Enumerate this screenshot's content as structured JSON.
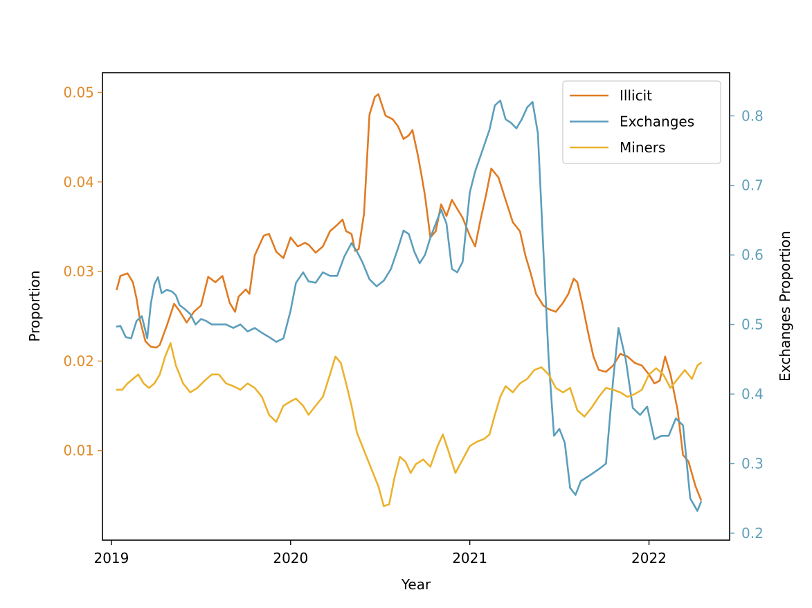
{
  "chart_data": {
    "type": "line",
    "xlabel": "Year",
    "ylabel_left": "Proportion",
    "ylabel_right": "Exchanges Proportion",
    "xlim": [
      2018.95,
      2022.45
    ],
    "ylim_left": [
      0.0,
      0.0522
    ],
    "ylim_right": [
      0.19,
      0.862
    ],
    "x_ticks": [
      2019,
      2020,
      2021,
      2022
    ],
    "x_tick_labels": [
      "2019",
      "2020",
      "2021",
      "2022"
    ],
    "y_left_ticks": [
      0.01,
      0.02,
      0.03,
      0.04,
      0.05
    ],
    "y_left_tick_labels": [
      "0.01",
      "0.02",
      "0.03",
      "0.04",
      "0.05"
    ],
    "y_right_ticks": [
      0.2,
      0.3,
      0.4,
      0.5,
      0.6,
      0.7,
      0.8
    ],
    "y_right_tick_labels": [
      "0.2",
      "0.3",
      "0.4",
      "0.5",
      "0.6",
      "0.7",
      "0.8"
    ],
    "grid": false,
    "legend_placement": "top-right",
    "left_axis_color": "#e08a2a",
    "right_axis_color": "#5fa0b8",
    "series": [
      {
        "name": "Illicit",
        "axis": "left",
        "color": "#e07b22",
        "x": [
          2019.03,
          2019.05,
          2019.09,
          2019.12,
          2019.14,
          2019.16,
          2019.19,
          2019.22,
          2019.25,
          2019.27,
          2019.31,
          2019.35,
          2019.38,
          2019.42,
          2019.46,
          2019.5,
          2019.54,
          2019.58,
          2019.62,
          2019.66,
          2019.69,
          2019.71,
          2019.75,
          2019.77,
          2019.8,
          2019.85,
          2019.88,
          2019.92,
          2019.96,
          2020.0,
          2020.04,
          2020.08,
          2020.1,
          2020.14,
          2020.18,
          2020.22,
          2020.26,
          2020.29,
          2020.31,
          2020.34,
          2020.36,
          2020.38,
          2020.41,
          2020.44,
          2020.47,
          2020.49,
          2020.53,
          2020.57,
          2020.6,
          2020.63,
          2020.66,
          2020.68,
          2020.71,
          2020.73,
          2020.75,
          2020.78,
          2020.81,
          2020.84,
          2020.87,
          2020.9,
          2020.93,
          2020.96,
          2021.0,
          2021.03,
          2021.06,
          2021.09,
          2021.12,
          2021.16,
          2021.2,
          2021.24,
          2021.28,
          2021.31,
          2021.34,
          2021.37,
          2021.41,
          2021.44,
          2021.48,
          2021.52,
          2021.55,
          2021.58,
          2021.6,
          2021.63,
          2021.66,
          2021.69,
          2021.72,
          2021.76,
          2021.8,
          2021.84,
          2021.88,
          2021.92,
          2021.96,
          2022.0,
          2022.03,
          2022.06,
          2022.09,
          2022.12,
          2022.16,
          2022.19,
          2022.22,
          2022.26,
          2022.29
        ],
        "values": [
          0.028,
          0.0295,
          0.0298,
          0.0288,
          0.027,
          0.0245,
          0.0222,
          0.0216,
          0.0215,
          0.0218,
          0.024,
          0.0264,
          0.0256,
          0.0243,
          0.0255,
          0.0262,
          0.0294,
          0.0288,
          0.0295,
          0.0265,
          0.0255,
          0.0272,
          0.028,
          0.0275,
          0.0318,
          0.034,
          0.0342,
          0.0322,
          0.0315,
          0.0338,
          0.0328,
          0.0332,
          0.033,
          0.0321,
          0.0328,
          0.0345,
          0.0352,
          0.0358,
          0.0345,
          0.0342,
          0.0323,
          0.0325,
          0.0365,
          0.0475,
          0.0495,
          0.0498,
          0.0474,
          0.047,
          0.0462,
          0.0448,
          0.0452,
          0.0458,
          0.043,
          0.0408,
          0.0385,
          0.0338,
          0.0345,
          0.0375,
          0.0362,
          0.038,
          0.037,
          0.036,
          0.034,
          0.0328,
          0.0358,
          0.0385,
          0.0415,
          0.0405,
          0.038,
          0.0355,
          0.0345,
          0.0318,
          0.0298,
          0.0275,
          0.0262,
          0.0258,
          0.0255,
          0.0265,
          0.0275,
          0.0292,
          0.0288,
          0.0262,
          0.0232,
          0.0205,
          0.019,
          0.0188,
          0.0195,
          0.0208,
          0.0205,
          0.0198,
          0.0195,
          0.0185,
          0.0175,
          0.0178,
          0.0205,
          0.0185,
          0.0145,
          0.0095,
          0.0088,
          0.006,
          0.0045
        ]
      },
      {
        "name": "Exchanges",
        "axis": "right",
        "color": "#5b9ebc",
        "x": [
          2019.03,
          2019.05,
          2019.08,
          2019.11,
          2019.14,
          2019.17,
          2019.2,
          2019.22,
          2019.24,
          2019.26,
          2019.28,
          2019.31,
          2019.34,
          2019.36,
          2019.38,
          2019.41,
          2019.44,
          2019.47,
          2019.5,
          2019.53,
          2019.56,
          2019.6,
          2019.64,
          2019.68,
          2019.72,
          2019.76,
          2019.8,
          2019.84,
          2019.88,
          2019.92,
          2019.96,
          2020.0,
          2020.03,
          2020.07,
          2020.1,
          2020.14,
          2020.18,
          2020.22,
          2020.26,
          2020.3,
          2020.34,
          2020.37,
          2020.4,
          2020.44,
          2020.48,
          2020.52,
          2020.56,
          2020.6,
          2020.63,
          2020.66,
          2020.69,
          2020.72,
          2020.75,
          2020.78,
          2020.81,
          2020.84,
          2020.87,
          2020.9,
          2020.93,
          2020.96,
          2021.0,
          2021.03,
          2021.07,
          2021.11,
          2021.14,
          2021.17,
          2021.2,
          2021.23,
          2021.26,
          2021.29,
          2021.32,
          2021.35,
          2021.38,
          2021.41,
          2021.44,
          2021.47,
          2021.5,
          2021.53,
          2021.56,
          2021.59,
          2021.62,
          2021.65,
          2021.68,
          2021.72,
          2021.76,
          2021.8,
          2021.83,
          2021.87,
          2021.91,
          2021.95,
          2021.99,
          2022.03,
          2022.07,
          2022.11,
          2022.15,
          2022.19,
          2022.23,
          2022.27,
          2022.29
        ],
        "values": [
          0.497,
          0.498,
          0.482,
          0.48,
          0.505,
          0.512,
          0.48,
          0.53,
          0.558,
          0.568,
          0.545,
          0.55,
          0.547,
          0.542,
          0.528,
          0.522,
          0.515,
          0.5,
          0.508,
          0.505,
          0.5,
          0.5,
          0.5,
          0.495,
          0.5,
          0.49,
          0.495,
          0.488,
          0.482,
          0.475,
          0.48,
          0.52,
          0.56,
          0.575,
          0.562,
          0.56,
          0.575,
          0.57,
          0.57,
          0.598,
          0.617,
          0.605,
          0.59,
          0.565,
          0.555,
          0.563,
          0.58,
          0.61,
          0.635,
          0.63,
          0.605,
          0.588,
          0.6,
          0.625,
          0.645,
          0.665,
          0.645,
          0.58,
          0.575,
          0.59,
          0.69,
          0.72,
          0.75,
          0.78,
          0.815,
          0.822,
          0.795,
          0.79,
          0.782,
          0.795,
          0.812,
          0.82,
          0.775,
          0.61,
          0.45,
          0.34,
          0.35,
          0.33,
          0.265,
          0.255,
          0.275,
          0.28,
          0.285,
          0.292,
          0.3,
          0.42,
          0.495,
          0.45,
          0.38,
          0.37,
          0.382,
          0.335,
          0.34,
          0.34,
          0.365,
          0.355,
          0.25,
          0.232,
          0.245
        ]
      },
      {
        "name": "Miners",
        "axis": "left",
        "color": "#ebb22d",
        "x": [
          2019.03,
          2019.06,
          2019.09,
          2019.12,
          2019.15,
          2019.18,
          2019.21,
          2019.24,
          2019.27,
          2019.3,
          2019.33,
          2019.36,
          2019.4,
          2019.44,
          2019.48,
          2019.52,
          2019.56,
          2019.6,
          2019.64,
          2019.68,
          2019.72,
          2019.76,
          2019.8,
          2019.84,
          2019.88,
          2019.92,
          2019.96,
          2020.0,
          2020.03,
          2020.07,
          2020.1,
          2020.14,
          2020.18,
          2020.22,
          2020.25,
          2020.28,
          2020.31,
          2020.34,
          2020.37,
          2020.41,
          2020.45,
          2020.49,
          2020.52,
          2020.55,
          2020.58,
          2020.61,
          2020.64,
          2020.67,
          2020.7,
          2020.74,
          2020.78,
          2020.82,
          2020.85,
          2020.88,
          2020.92,
          2020.96,
          2021.0,
          2021.04,
          2021.08,
          2021.11,
          2021.14,
          2021.17,
          2021.2,
          2021.24,
          2021.28,
          2021.32,
          2021.36,
          2021.4,
          2021.44,
          2021.48,
          2021.52,
          2021.56,
          2021.6,
          2021.64,
          2021.68,
          2021.72,
          2021.76,
          2021.8,
          2021.84,
          2021.88,
          2021.92,
          2021.96,
          2022.0,
          2022.04,
          2022.08,
          2022.12,
          2022.16,
          2022.2,
          2022.24,
          2022.27,
          2022.29
        ],
        "values": [
          0.0168,
          0.0168,
          0.0175,
          0.018,
          0.0185,
          0.0175,
          0.017,
          0.0175,
          0.0185,
          0.0205,
          0.022,
          0.0195,
          0.0175,
          0.0165,
          0.017,
          0.0178,
          0.0185,
          0.0185,
          0.0175,
          0.0172,
          0.0168,
          0.0175,
          0.017,
          0.016,
          0.014,
          0.0132,
          0.015,
          0.0155,
          0.0158,
          0.015,
          0.014,
          0.015,
          0.016,
          0.0185,
          0.0205,
          0.0198,
          0.0175,
          0.015,
          0.012,
          0.01,
          0.008,
          0.006,
          0.0038,
          0.004,
          0.007,
          0.0093,
          0.0088,
          0.0075,
          0.0085,
          0.009,
          0.0082,
          0.0105,
          0.0118,
          0.01,
          0.0075,
          0.009,
          0.0105,
          0.011,
          0.0113,
          0.0118,
          0.014,
          0.016,
          0.0172,
          0.0165,
          0.0175,
          0.018,
          0.019,
          0.0193,
          0.0185,
          0.017,
          0.0165,
          0.017,
          0.0145,
          0.0138,
          0.0148,
          0.016,
          0.017,
          0.0168,
          0.0165,
          0.016,
          0.0163,
          0.0168,
          0.0185,
          0.0192,
          0.0185,
          0.017,
          0.018,
          0.019,
          0.018,
          0.0195,
          0.0198
        ]
      }
    ]
  }
}
